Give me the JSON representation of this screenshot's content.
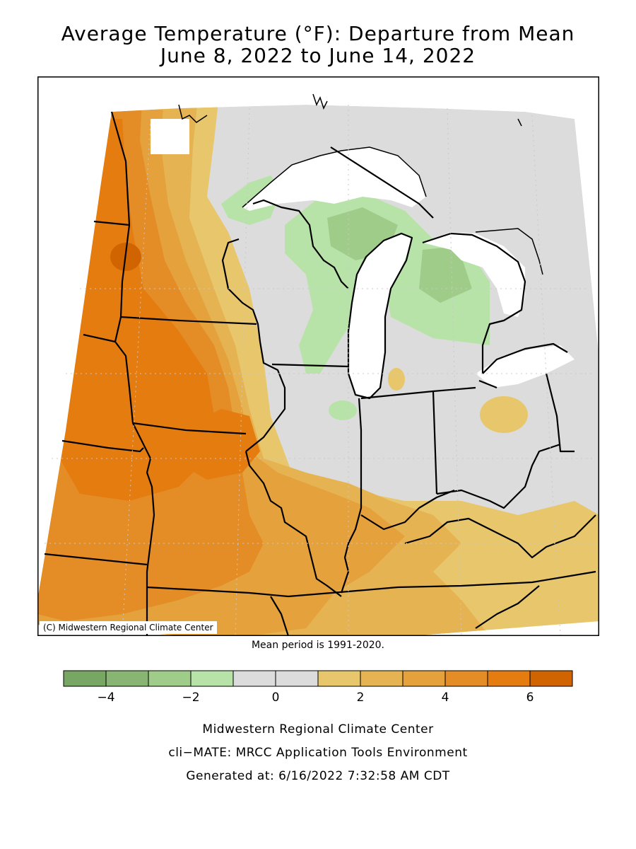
{
  "title": {
    "line1": "Average Temperature (°F): Departure from Mean",
    "line2": "June 8, 2022 to June 14, 2022"
  },
  "map": {
    "credit": "(C) Midwestern Regional Climate Center",
    "mean_period": "Mean period is 1991-2020."
  },
  "legend": {
    "colors": [
      "#78a764",
      "#88b672",
      "#a0cc8a",
      "#b8e3a8",
      "#dcdcdc",
      "#dcdcdc",
      "#e8c76c",
      "#e6b352",
      "#e4a13c",
      "#e48c26",
      "#e47c10",
      "#d06400"
    ],
    "ticks": [
      "−4",
      "−2",
      "0",
      "2",
      "4",
      "6"
    ]
  },
  "footer": {
    "org": "Midwestern Regional Climate Center",
    "tool": "cli−MATE: MRCC Application Tools Environment",
    "generated": "Generated at: 6/16/2022 7:32:58 AM CDT"
  }
}
